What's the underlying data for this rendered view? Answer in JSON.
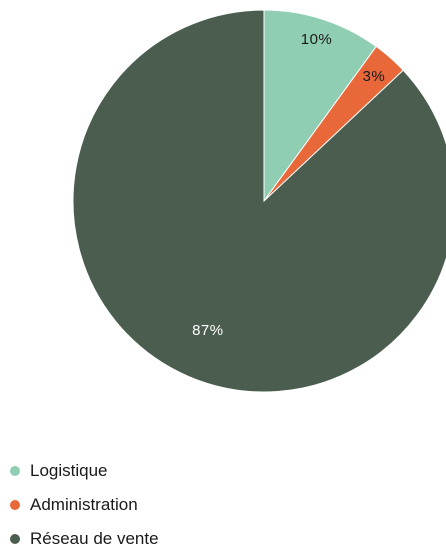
{
  "chart_data": {
    "type": "pie",
    "categories": [
      "Logistique",
      "Administration",
      "Réseau de vente"
    ],
    "values": [
      10,
      3,
      87
    ],
    "labels": [
      "10%",
      "3%",
      "87%"
    ],
    "colors": [
      "#8fceb3",
      "#e8683a",
      "#4a5d4e"
    ],
    "label_colors": [
      "#1a1a1a",
      "#1a1a1a",
      "#ffffff"
    ],
    "start_angle_deg": 0,
    "direction": "clockwise",
    "legend_position": "bottom-left"
  }
}
